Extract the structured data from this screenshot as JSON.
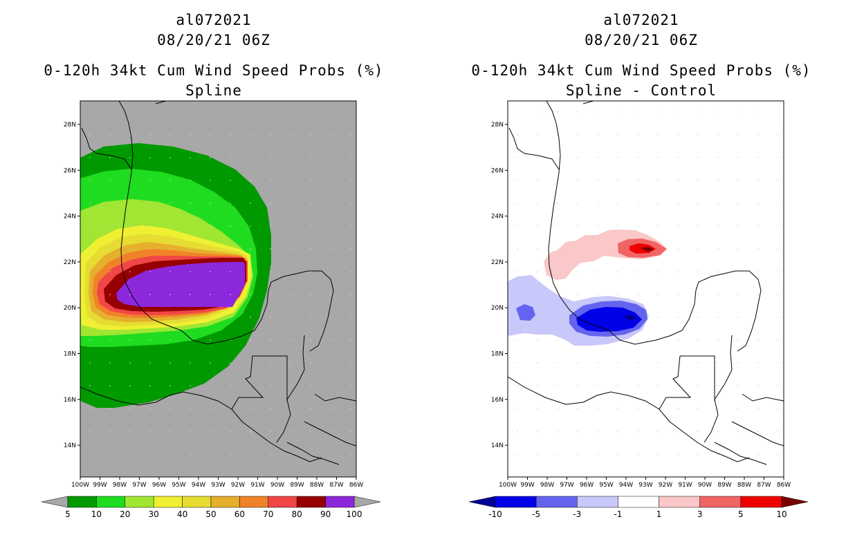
{
  "panels": [
    {
      "storm_id": "al072021",
      "datetime": "08/20/21 06Z",
      "product": "0-120h 34kt Cum Wind Speed Probs (%)",
      "subtitle": "Spline",
      "background_color": "#a8a8a8",
      "lat_ticks": [
        "28N",
        "26N",
        "24N",
        "22N",
        "20N",
        "18N",
        "16N",
        "14N"
      ],
      "lon_ticks": [
        "100W",
        "99W",
        "98W",
        "97W",
        "96W",
        "95W",
        "94W",
        "93W",
        "92W",
        "91W",
        "90W",
        "89W",
        "88W",
        "87W",
        "86W"
      ],
      "colorbar": {
        "colors": [
          "#009a00",
          "#20dc20",
          "#a0e632",
          "#f0f032",
          "#e6dc32",
          "#e6af2d",
          "#f08228",
          "#f04646",
          "#960000",
          "#8c28dc"
        ],
        "labels": [
          "5",
          "10",
          "20",
          "30",
          "40",
          "50",
          "60",
          "70",
          "80",
          "90",
          "100"
        ],
        "under_color": "#a8a8a8",
        "over_color": "#a8a8a8"
      }
    },
    {
      "storm_id": "al072021",
      "datetime": "08/20/21 06Z",
      "product": "0-120h 34kt Cum Wind Speed Probs (%)",
      "subtitle": "Spline - Control",
      "background_color": "#ffffff",
      "lat_ticks": [
        "28N",
        "26N",
        "24N",
        "22N",
        "20N",
        "18N",
        "16N",
        "14N"
      ],
      "lon_ticks": [
        "100W",
        "99W",
        "98W",
        "97W",
        "96W",
        "95W",
        "94W",
        "93W",
        "92W",
        "91W",
        "90W",
        "89W",
        "88W",
        "87W",
        "86W"
      ],
      "colorbar": {
        "colors": [
          "#0000e6",
          "#6464f0",
          "#c8c8fa",
          "#ffffff",
          "#fac8c8",
          "#f06464",
          "#f00000"
        ],
        "labels": [
          "-10",
          "-5",
          "-3",
          "-1",
          "1",
          "3",
          "5",
          "10"
        ],
        "under_color": "#000096",
        "over_color": "#780000"
      }
    }
  ]
}
